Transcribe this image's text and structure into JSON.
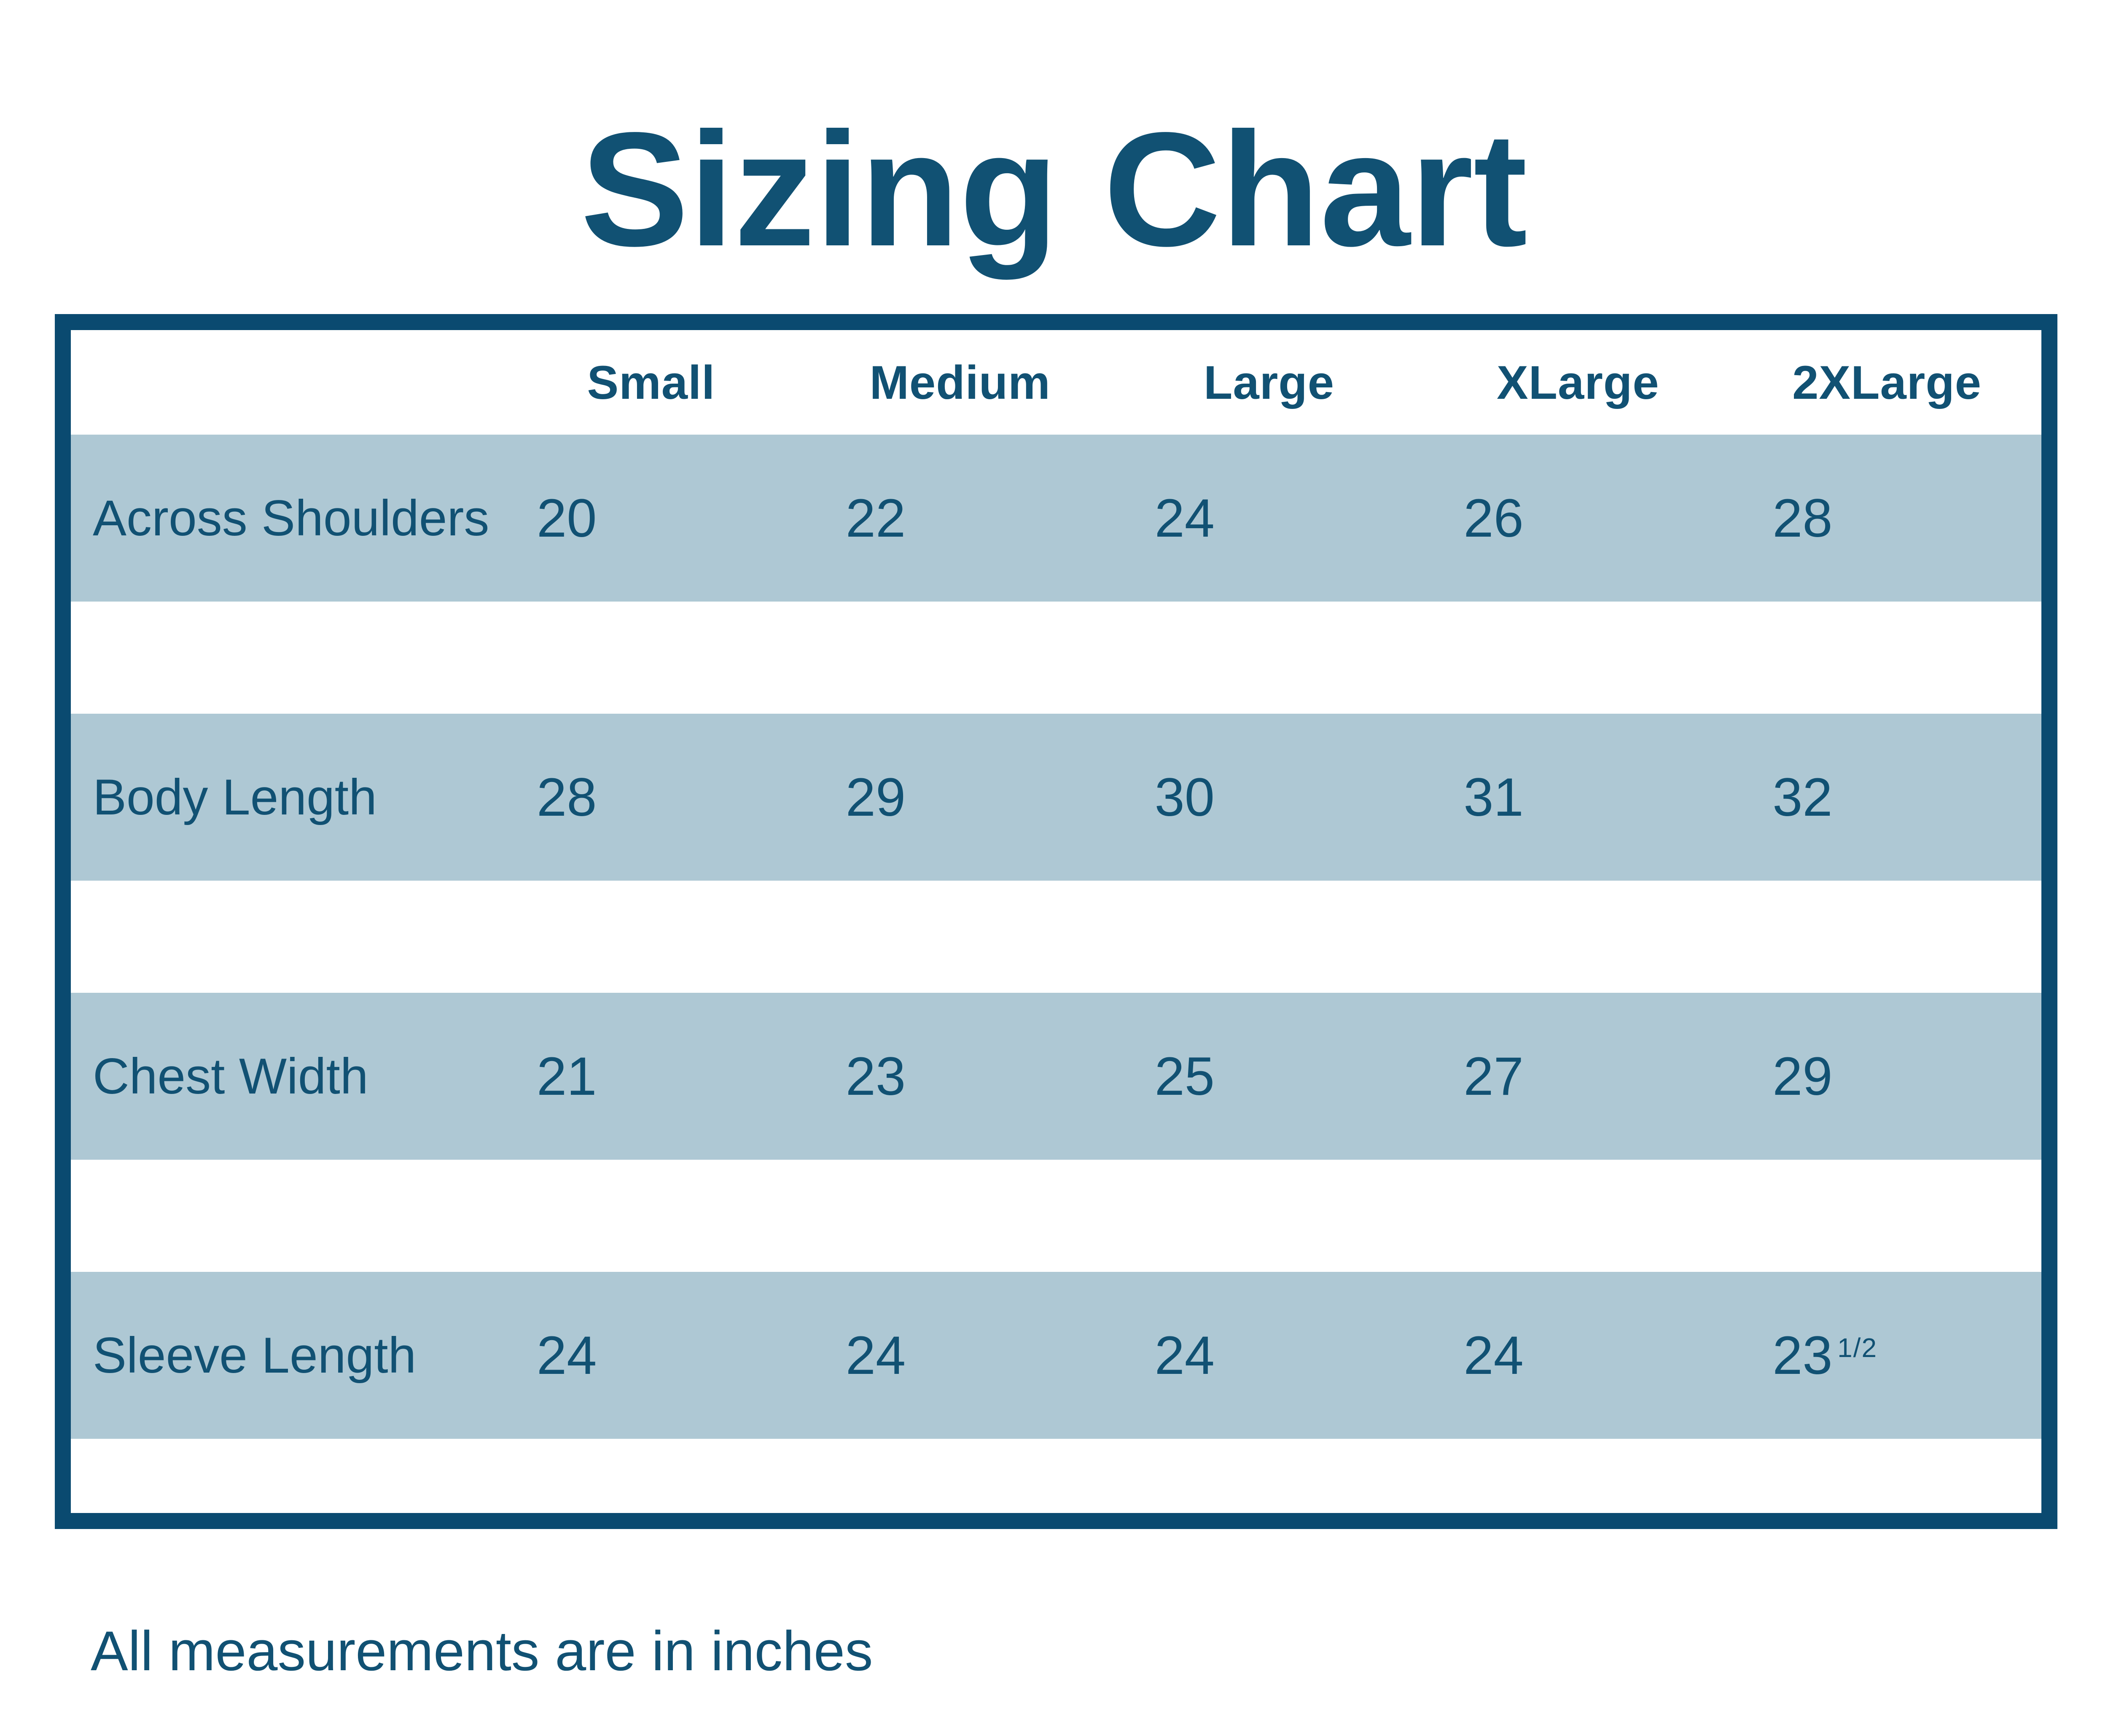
{
  "title": "Sizing Chart",
  "footnote": "All measurements are in inches",
  "colors": {
    "accent_text": "#115173",
    "border_color": "#0a4a70",
    "band_color": "#aec8d4",
    "page_bg": "#ffffff"
  },
  "chart_data": {
    "type": "table",
    "title": "Sizing Chart",
    "columns": [
      "Small",
      "Medium",
      "Large",
      "XLarge",
      "2XLarge"
    ],
    "rows": [
      {
        "label": "Across Shoulders",
        "values": [
          "20",
          "22",
          "24",
          "26",
          "28"
        ]
      },
      {
        "label": "Body Length",
        "values": [
          "28",
          "29",
          "30",
          "31",
          "32"
        ]
      },
      {
        "label": "Chest Width",
        "values": [
          "21",
          "23",
          "25",
          "27",
          "29"
        ]
      },
      {
        "label": "Sleeve Length",
        "values": [
          "24",
          "24",
          "24",
          "24",
          "23"
        ],
        "values_sup": [
          "",
          "",
          "",
          "",
          "1/2"
        ]
      }
    ],
    "note": "All measurements are in inches",
    "layout": {
      "row_band_fill": "light-blue",
      "separator_rows": "white",
      "grid_lines": "none",
      "outer_border": "thick-navy"
    }
  }
}
